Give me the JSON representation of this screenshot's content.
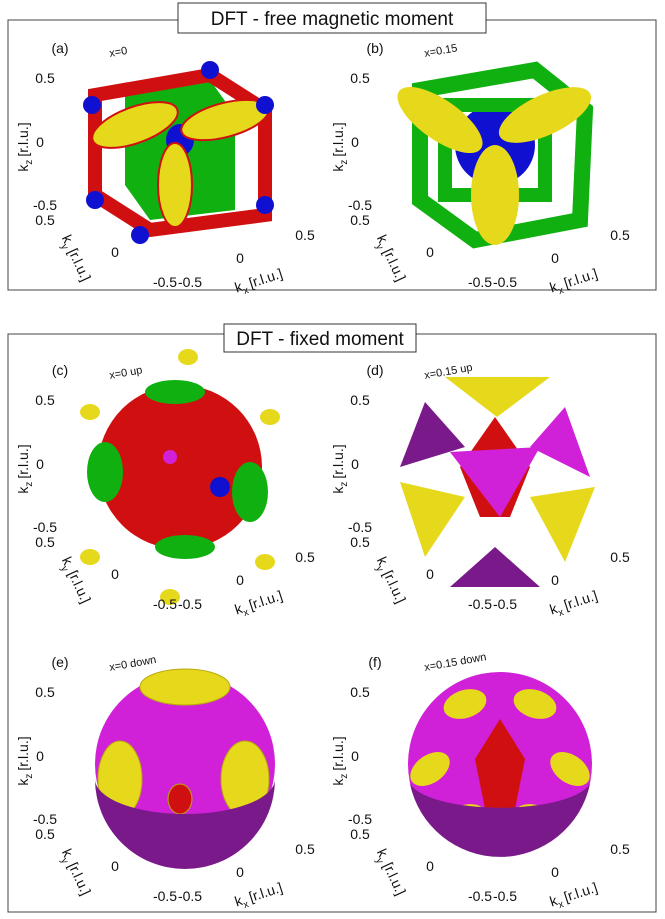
{
  "sections": [
    {
      "title": "DFT - free magnetic moment",
      "panels": [
        {
          "label": "(a)",
          "annotation": "x=0"
        },
        {
          "label": "(b)",
          "annotation": "x=0.15"
        }
      ]
    },
    {
      "title": "DFT - fixed moment",
      "panels": [
        {
          "label": "(c)",
          "annotation": "x=0 up"
        },
        {
          "label": "(d)",
          "annotation": "x=0.15 up"
        },
        {
          "label": "(e)",
          "annotation": "x=0 down"
        },
        {
          "label": "(f)",
          "annotation": "x=0.15 down"
        }
      ]
    }
  ],
  "axes": {
    "kz": {
      "symbol": "k",
      "sub": "z",
      "unit": "[r.l.u.]",
      "ticks": [
        "0.5",
        "0",
        "-0.5"
      ]
    },
    "ky": {
      "symbol": "k",
      "sub": "y",
      "unit": "[r.l.u.]",
      "ticks": [
        "0.5",
        "0",
        "-0.5"
      ]
    },
    "kx": {
      "symbol": "k",
      "sub": "x",
      "unit": "[r.l.u.]",
      "ticks": [
        "-0.5",
        "0",
        "0.5"
      ]
    }
  }
}
